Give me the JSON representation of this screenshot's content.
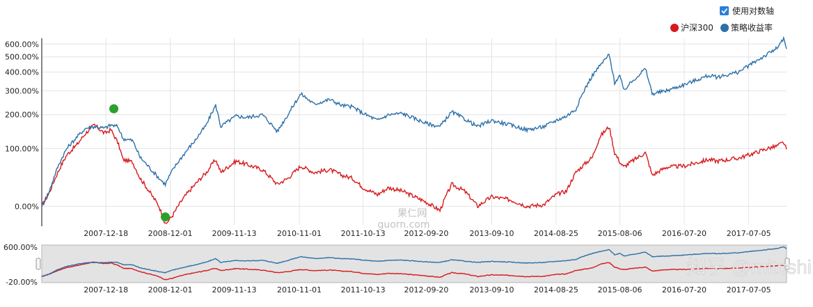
{
  "controls": {
    "log_axis_label": "使用对数轴",
    "log_axis_checked": true
  },
  "watermarks": {
    "center_line1": "果仁网",
    "center_line2": "guorn.com",
    "corner": "知乎 @mitcshi"
  },
  "colors": {
    "benchmark": "#d7191c",
    "strategy": "#2c6fa8",
    "marker": "#2ca02c",
    "navigator_bg": "#e3e3e3"
  },
  "chart_data": {
    "type": "line",
    "log_scale": true,
    "legend_position": "top-right",
    "grid": true,
    "ylim": [
      -20,
      650
    ],
    "yticks": [
      0,
      100,
      200,
      300,
      400,
      500,
      600
    ],
    "ytick_labels": [
      "0.00%",
      "100.00%",
      "200.00%",
      "300.00%",
      "400.00%",
      "500.00%",
      "600.00%"
    ],
    "xtick_labels": [
      "2007-12-18",
      "2008-12-01",
      "2009-11-13",
      "2010-11-01",
      "2011-10-13",
      "2012-09-20",
      "2013-09-10",
      "2014-08-25",
      "2015-08-06",
      "2016-07-20",
      "2017-07-05"
    ],
    "x_range": [
      "2007-01-04",
      "2018-01-26"
    ],
    "series": [
      {
        "name": "沪深300",
        "color": "#d7191c",
        "points": [
          [
            "2007-01-04",
            0
          ],
          [
            "2007-02-15",
            18
          ],
          [
            "2007-04-01",
            50
          ],
          [
            "2007-05-20",
            85
          ],
          [
            "2007-07-15",
            110
          ],
          [
            "2007-08-30",
            140
          ],
          [
            "2007-10-16",
            165
          ],
          [
            "2007-12-10",
            140
          ],
          [
            "2008-01-14",
            150
          ],
          [
            "2008-02-20",
            115
          ],
          [
            "2008-03-20",
            75
          ],
          [
            "2008-05-10",
            70
          ],
          [
            "2008-06-20",
            40
          ],
          [
            "2008-08-20",
            15
          ],
          [
            "2008-10-01",
            0
          ],
          [
            "2008-11-04",
            -20
          ],
          [
            "2008-12-15",
            -10
          ],
          [
            "2009-02-10",
            10
          ],
          [
            "2009-04-15",
            30
          ],
          [
            "2009-06-15",
            50
          ],
          [
            "2009-08-04",
            75
          ],
          [
            "2009-09-01",
            50
          ],
          [
            "2009-11-23",
            72
          ],
          [
            "2010-01-20",
            65
          ],
          [
            "2010-04-15",
            55
          ],
          [
            "2010-07-05",
            30
          ],
          [
            "2010-09-01",
            40
          ],
          [
            "2010-11-10",
            62
          ],
          [
            "2011-01-20",
            50
          ],
          [
            "2011-04-15",
            55
          ],
          [
            "2011-06-20",
            45
          ],
          [
            "2011-08-15",
            40
          ],
          [
            "2011-10-13",
            25
          ],
          [
            "2011-12-30",
            15
          ],
          [
            "2012-02-28",
            25
          ],
          [
            "2012-05-10",
            20
          ],
          [
            "2012-09-20",
            5
          ],
          [
            "2012-12-03",
            -5
          ],
          [
            "2013-02-06",
            30
          ],
          [
            "2013-04-15",
            20
          ],
          [
            "2013-06-25",
            0
          ],
          [
            "2013-09-10",
            12
          ],
          [
            "2013-12-20",
            8
          ],
          [
            "2014-03-20",
            0
          ],
          [
            "2014-06-20",
            2
          ],
          [
            "2014-08-25",
            15
          ],
          [
            "2014-10-20",
            20
          ],
          [
            "2014-12-10",
            50
          ],
          [
            "2015-03-10",
            80
          ],
          [
            "2015-04-20",
            130
          ],
          [
            "2015-06-08",
            160
          ],
          [
            "2015-07-08",
            90
          ],
          [
            "2015-08-06",
            70
          ],
          [
            "2015-08-26",
            60
          ],
          [
            "2015-12-22",
            90
          ],
          [
            "2016-01-28",
            45
          ],
          [
            "2016-04-15",
            60
          ],
          [
            "2016-07-20",
            62
          ],
          [
            "2016-11-30",
            75
          ],
          [
            "2017-01-15",
            72
          ],
          [
            "2017-05-10",
            78
          ],
          [
            "2017-07-05",
            85
          ],
          [
            "2017-10-15",
            100
          ],
          [
            "2017-11-30",
            105
          ],
          [
            "2018-01-10",
            115
          ],
          [
            "2018-01-26",
            98
          ]
        ]
      },
      {
        "name": "策略收益率",
        "color": "#2c6fa8",
        "points": [
          [
            "2007-01-04",
            0
          ],
          [
            "2007-02-15",
            20
          ],
          [
            "2007-04-01",
            60
          ],
          [
            "2007-05-20",
            100
          ],
          [
            "2007-07-15",
            130
          ],
          [
            "2007-08-30",
            155
          ],
          [
            "2007-10-16",
            160
          ],
          [
            "2007-12-10",
            155
          ],
          [
            "2008-01-14",
            165
          ],
          [
            "2008-02-20",
            160
          ],
          [
            "2008-03-20",
            125
          ],
          [
            "2008-05-10",
            120
          ],
          [
            "2008-06-20",
            80
          ],
          [
            "2008-08-20",
            55
          ],
          [
            "2008-10-01",
            40
          ],
          [
            "2008-11-04",
            30
          ],
          [
            "2008-12-15",
            55
          ],
          [
            "2009-02-10",
            85
          ],
          [
            "2009-04-15",
            120
          ],
          [
            "2009-06-15",
            165
          ],
          [
            "2009-08-04",
            235
          ],
          [
            "2009-09-01",
            160
          ],
          [
            "2009-11-23",
            195
          ],
          [
            "2010-01-20",
            190
          ],
          [
            "2010-04-15",
            200
          ],
          [
            "2010-07-05",
            145
          ],
          [
            "2010-09-01",
            200
          ],
          [
            "2010-11-10",
            285
          ],
          [
            "2011-01-20",
            240
          ],
          [
            "2011-04-15",
            260
          ],
          [
            "2011-06-20",
            235
          ],
          [
            "2011-08-15",
            230
          ],
          [
            "2011-10-13",
            205
          ],
          [
            "2011-12-30",
            180
          ],
          [
            "2012-02-28",
            200
          ],
          [
            "2012-05-10",
            205
          ],
          [
            "2012-09-20",
            170
          ],
          [
            "2012-12-03",
            160
          ],
          [
            "2013-02-06",
            210
          ],
          [
            "2013-04-15",
            185
          ],
          [
            "2013-06-25",
            160
          ],
          [
            "2013-09-10",
            180
          ],
          [
            "2013-12-20",
            165
          ],
          [
            "2014-03-20",
            150
          ],
          [
            "2014-06-20",
            160
          ],
          [
            "2014-08-25",
            180
          ],
          [
            "2014-10-20",
            195
          ],
          [
            "2014-12-10",
            220
          ],
          [
            "2015-03-10",
            380
          ],
          [
            "2015-04-20",
            440
          ],
          [
            "2015-06-08",
            515
          ],
          [
            "2015-07-08",
            340
          ],
          [
            "2015-08-06",
            380
          ],
          [
            "2015-08-26",
            300
          ],
          [
            "2015-12-22",
            420
          ],
          [
            "2016-01-28",
            285
          ],
          [
            "2016-04-15",
            300
          ],
          [
            "2016-07-20",
            330
          ],
          [
            "2016-11-30",
            380
          ],
          [
            "2017-01-15",
            370
          ],
          [
            "2017-05-10",
            400
          ],
          [
            "2017-07-05",
            440
          ],
          [
            "2017-10-15",
            520
          ],
          [
            "2017-11-30",
            560
          ],
          [
            "2018-01-10",
            640
          ],
          [
            "2018-01-26",
            560
          ]
        ]
      }
    ],
    "markers": [
      {
        "date": "2008-01-30",
        "value": 222,
        "series": "策略收益率"
      },
      {
        "date": "2008-11-04",
        "value": -12,
        "series": "沪深300"
      }
    ],
    "navigator": {
      "ytick_labels": [
        "600.00%",
        "-20.00%"
      ],
      "ylim": [
        -20,
        600
      ]
    }
  }
}
